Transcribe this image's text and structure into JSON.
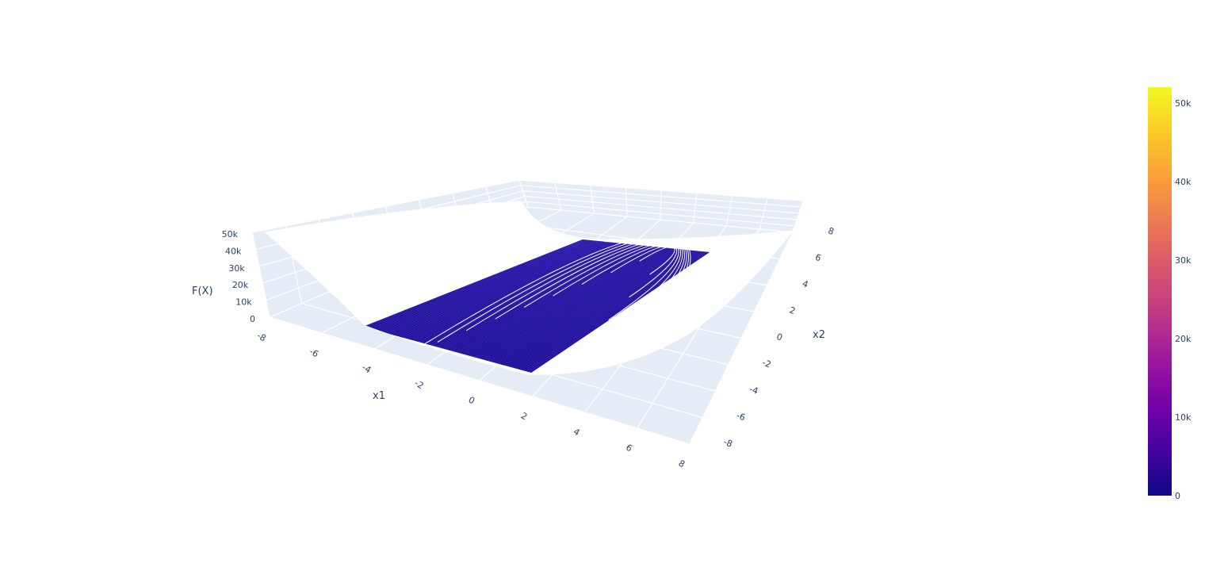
{
  "chart_data": {
    "type": "surface",
    "title": "",
    "axes": {
      "x": {
        "label": "x1",
        "range": [
          -8,
          8
        ],
        "ticks": [
          "-8",
          "-6",
          "-4",
          "-2",
          "0",
          "2",
          "4",
          "6",
          "8"
        ]
      },
      "y": {
        "label": "x2",
        "range": [
          -8,
          8
        ],
        "ticks": [
          "-8",
          "-6",
          "-4",
          "-2",
          "0",
          "2",
          "4",
          "6",
          "8"
        ]
      },
      "z": {
        "label": "F(X)",
        "range": [
          0,
          50000
        ],
        "ticks": [
          "0",
          "10k",
          "20k",
          "30k",
          "40k",
          "50k"
        ]
      }
    },
    "surface": {
      "shape": "parabolic valley along x1, floor near 0",
      "z_min": 0,
      "z_max": 52000,
      "contours_on_floor": true
    },
    "colorbar": {
      "colorscale": "plasma",
      "range": [
        0,
        52000
      ],
      "ticks": [
        {
          "value": 0,
          "label": "0"
        },
        {
          "value": 10000,
          "label": "10k"
        },
        {
          "value": 20000,
          "label": "20k"
        },
        {
          "value": 30000,
          "label": "30k"
        },
        {
          "value": 40000,
          "label": "40k"
        },
        {
          "value": 50000,
          "label": "50k"
        }
      ]
    },
    "grid": true,
    "scene_color": "#e5ecf6",
    "surface_color": "#1c0f95"
  }
}
